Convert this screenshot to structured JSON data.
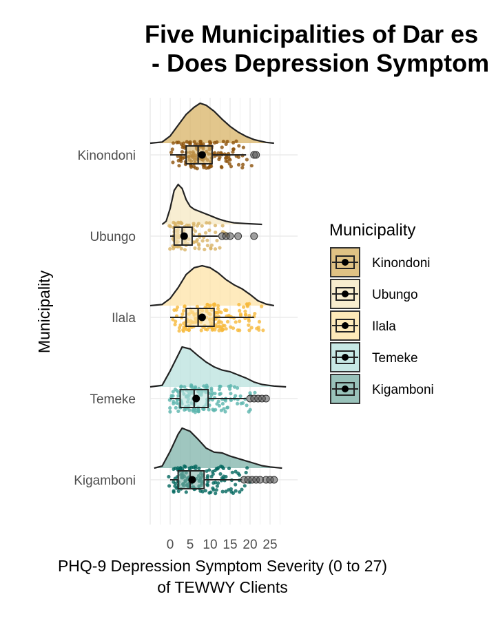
{
  "chart_data": {
    "type": "raincloud",
    "title_lines": [
      "Five Municipalities of Dar es",
      " - Does Depression Symptom"
    ],
    "xlabel_lines": [
      "PHQ-9 Depression Symptom Severity (0 to 27)",
      "of TEWWY Clients"
    ],
    "ylabel": "Municipality",
    "x_ticks": [
      "0",
      "5",
      "10",
      "15",
      "20",
      "25"
    ],
    "xlim": [
      -5,
      29
    ],
    "grid": true,
    "legend": {
      "title": "Municipality",
      "position": "right"
    },
    "categories": [
      "Kinondoni",
      "Ubungo",
      "Ilala",
      "Temeke",
      "Kigamboni"
    ],
    "series": [
      {
        "name": "Kinondoni",
        "color": "#8c510a",
        "fill": "#d8b365",
        "box": {
          "q1": 4,
          "median": 7,
          "q3": 10.5,
          "whisker_low": 0,
          "whisker_high": 19
        },
        "mean": 8,
        "outliers": [
          21,
          21.5
        ],
        "density": [
          [
            -5,
            0
          ],
          [
            -2,
            0.03
          ],
          [
            0,
            0.18
          ],
          [
            2,
            0.45
          ],
          [
            4,
            0.72
          ],
          [
            6,
            0.9
          ],
          [
            7.5,
            1.0
          ],
          [
            9,
            0.95
          ],
          [
            11,
            0.8
          ],
          [
            13,
            0.6
          ],
          [
            15,
            0.42
          ],
          [
            17,
            0.28
          ],
          [
            19,
            0.17
          ],
          [
            21,
            0.09
          ],
          [
            24,
            0.02
          ],
          [
            26,
            0
          ]
        ]
      },
      {
        "name": "Ubungo",
        "color": "#d8b365",
        "fill": "#f6e8c3",
        "box": {
          "q1": 1,
          "median": 3,
          "q3": 5.5,
          "whisker_low": 0,
          "whisker_high": 12
        },
        "mean": 3.5,
        "outliers": [
          13,
          14,
          15,
          17,
          21
        ],
        "density": [
          [
            -2,
            0
          ],
          [
            -1,
            0.08
          ],
          [
            0,
            0.4
          ],
          [
            1,
            0.85
          ],
          [
            2,
            1.0
          ],
          [
            3,
            0.9
          ],
          [
            4,
            0.62
          ],
          [
            5,
            0.45
          ],
          [
            6,
            0.38
          ],
          [
            8,
            0.3
          ],
          [
            10,
            0.22
          ],
          [
            12,
            0.14
          ],
          [
            14,
            0.08
          ],
          [
            16,
            0.04
          ],
          [
            19,
            0.02
          ],
          [
            23,
            0
          ]
        ]
      },
      {
        "name": "Ilala",
        "color": "#f6b93b",
        "fill": "#fde3a7",
        "box": {
          "q1": 4,
          "median": 7,
          "q3": 11,
          "whisker_low": 0,
          "whisker_high": 21
        },
        "mean": 8,
        "outliers": [],
        "density": [
          [
            -5,
            0
          ],
          [
            -2,
            0.03
          ],
          [
            0,
            0.18
          ],
          [
            2,
            0.45
          ],
          [
            4,
            0.78
          ],
          [
            6,
            0.95
          ],
          [
            8,
            1.0
          ],
          [
            10,
            0.95
          ],
          [
            12,
            0.82
          ],
          [
            14,
            0.65
          ],
          [
            16,
            0.52
          ],
          [
            18,
            0.42
          ],
          [
            20,
            0.28
          ],
          [
            22,
            0.12
          ],
          [
            24,
            0.04
          ],
          [
            26,
            0
          ]
        ]
      },
      {
        "name": "Temeke",
        "color": "#5ab4ac",
        "fill": "#b9e2de",
        "box": {
          "q1": 2.5,
          "median": 6,
          "q3": 9.5,
          "whisker_low": 0,
          "whisker_high": 19
        },
        "mean": 6.5,
        "outliers": [
          20,
          21,
          22,
          23,
          24
        ],
        "density": [
          [
            -5,
            0
          ],
          [
            -2,
            0.04
          ],
          [
            0,
            0.4
          ],
          [
            2,
            0.8
          ],
          [
            3,
            1.0
          ],
          [
            5,
            0.95
          ],
          [
            7,
            0.78
          ],
          [
            9,
            0.62
          ],
          [
            11,
            0.5
          ],
          [
            13,
            0.42
          ],
          [
            15,
            0.38
          ],
          [
            17,
            0.3
          ],
          [
            19,
            0.22
          ],
          [
            21,
            0.12
          ],
          [
            23,
            0.06
          ],
          [
            26,
            0.02
          ],
          [
            29,
            0
          ]
        ]
      },
      {
        "name": "Kigamboni",
        "color": "#01665e",
        "fill": "#7fb3a9",
        "box": {
          "q1": 2,
          "median": 5,
          "q3": 8.5,
          "whisker_low": 0,
          "whisker_high": 18
        },
        "mean": 5.5,
        "outliers": [
          18.5,
          19.5,
          20.5,
          21.5,
          22.5,
          24,
          25,
          26
        ],
        "density": [
          [
            -4,
            0
          ],
          [
            -2,
            0.05
          ],
          [
            0,
            0.42
          ],
          [
            2,
            0.85
          ],
          [
            3,
            1.0
          ],
          [
            5,
            0.92
          ],
          [
            7,
            0.72
          ],
          [
            9,
            0.5
          ],
          [
            11,
            0.4
          ],
          [
            13,
            0.38
          ],
          [
            15,
            0.3
          ],
          [
            17,
            0.24
          ],
          [
            19,
            0.18
          ],
          [
            21,
            0.12
          ],
          [
            23,
            0.06
          ],
          [
            25,
            0.03
          ],
          [
            28,
            0
          ]
        ]
      }
    ]
  }
}
